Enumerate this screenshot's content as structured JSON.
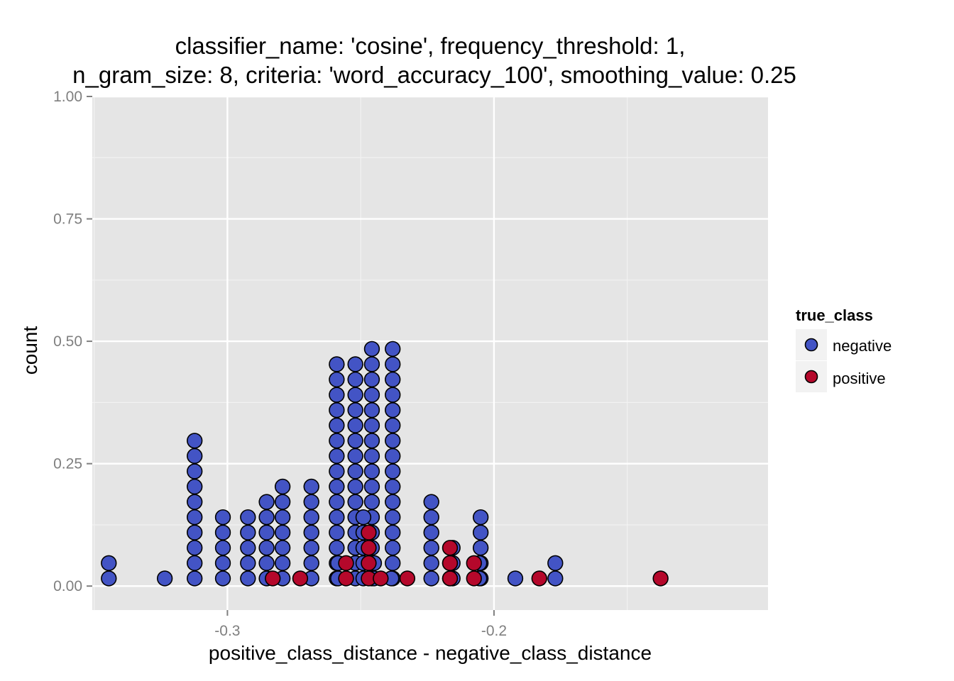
{
  "chart_data": {
    "type": "dotplot",
    "title": [
      "classifier_name: 'cosine', frequency_threshold: 1,",
      "n_gram_size: 8, criteria: 'word_accuracy_100', smoothing_value: 0.25"
    ],
    "xlabel": "positive_class_distance - negative_class_distance",
    "ylabel": "count",
    "xlim": [
      -0.3507,
      -0.0972
    ],
    "ylim": [
      -0.049,
      1.0
    ],
    "x_ticks": [
      {
        "value": -0.3,
        "label": "-0.3"
      },
      {
        "value": -0.2,
        "label": "-0.2"
      }
    ],
    "y_ticks": [
      {
        "value": 0.0,
        "label": "0.00"
      },
      {
        "value": 0.25,
        "label": "0.25"
      },
      {
        "value": 0.5,
        "label": "0.50"
      },
      {
        "value": 0.75,
        "label": "0.75"
      },
      {
        "value": 1.0,
        "label": "1.00"
      }
    ],
    "grid": true,
    "background": "#e5e5e5",
    "legend": {
      "title": "true_class",
      "position": "right",
      "entries": [
        {
          "name": "negative",
          "color": "#4354c5"
        },
        {
          "name": "positive",
          "color": "#b5082b"
        }
      ]
    },
    "dot_stack_unit": 0.03125,
    "series": [
      {
        "name": "negative",
        "color": "#4354c5",
        "stacks": [
          {
            "x": -0.3445,
            "n": 2
          },
          {
            "x": -0.3235,
            "n": 1
          },
          {
            "x": -0.3123,
            "n": 10
          },
          {
            "x": -0.3017,
            "n": 5
          },
          {
            "x": -0.2923,
            "n": 5
          },
          {
            "x": -0.2853,
            "n": 6
          },
          {
            "x": -0.2793,
            "n": 7
          },
          {
            "x": -0.2685,
            "n": 7
          },
          {
            "x": -0.259,
            "n": 15
          },
          {
            "x": -0.252,
            "n": 15
          },
          {
            "x": -0.2458,
            "n": 16
          },
          {
            "x": -0.238,
            "n": 16
          },
          {
            "x": -0.2235,
            "n": 6
          },
          {
            "x": -0.2155,
            "n": 3
          },
          {
            "x": -0.205,
            "n": 5
          },
          {
            "x": -0.192,
            "n": 1
          },
          {
            "x": -0.177,
            "n": 2
          },
          {
            "x": -0.249,
            "n": 5
          },
          {
            "x": -0.245,
            "n": 2
          },
          {
            "x": -0.2585,
            "n": 2
          },
          {
            "x": -0.2165,
            "n": 2
          },
          {
            "x": -0.2055,
            "n": 2
          },
          {
            "x": -0.2385,
            "n": 1
          }
        ]
      },
      {
        "name": "positive",
        "color": "#b5082b",
        "stacks": [
          {
            "x": -0.283,
            "n": 1
          },
          {
            "x": -0.2727,
            "n": 1
          },
          {
            "x": -0.2555,
            "n": 2
          },
          {
            "x": -0.247,
            "n": 4
          },
          {
            "x": -0.2425,
            "n": 1
          },
          {
            "x": -0.2325,
            "n": 1
          },
          {
            "x": -0.2165,
            "n": 3
          },
          {
            "x": -0.2075,
            "n": 2
          },
          {
            "x": -0.183,
            "n": 1
          },
          {
            "x": -0.1375,
            "n": 1
          }
        ]
      }
    ]
  }
}
